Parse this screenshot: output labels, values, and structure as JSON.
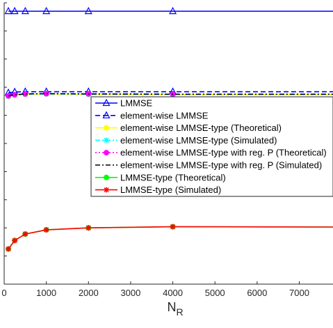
{
  "chart_data": {
    "type": "line",
    "title": "",
    "xlabel": "N",
    "xlabel_subscript": "R",
    "ylabel": "",
    "xlim": [
      0,
      7800
    ],
    "ylim": [
      0,
      1
    ],
    "xticks": [
      0,
      1000,
      2000,
      3000,
      4000,
      5000,
      6000,
      7000
    ],
    "xtick_labels": [
      "0",
      "1000",
      "2000",
      "3000",
      "4000",
      "5000",
      "6000",
      "7000"
    ],
    "grid": false,
    "legend_position": "right",
    "series": [
      {
        "name": "LMMSE",
        "color": "#0000ff",
        "dash": "solid",
        "marker": "triangle",
        "x": [
          100,
          250,
          500,
          1000,
          2000,
          4000,
          7800
        ],
        "y": [
          0.97,
          0.97,
          0.97,
          0.97,
          0.97,
          0.97,
          0.97
        ],
        "marker_x": [
          100,
          250,
          500,
          1000,
          2000,
          4000
        ]
      },
      {
        "name": "element-wise LMMSE",
        "color": "#0000ff",
        "dash": "dashed",
        "marker": "triangle",
        "x": [
          100,
          250,
          500,
          1000,
          2000,
          4000,
          7800
        ],
        "y": [
          0.68,
          0.683,
          0.684,
          0.684,
          0.684,
          0.684,
          0.684
        ],
        "marker_x": [
          100,
          250,
          500,
          1000,
          2000,
          4000
        ]
      },
      {
        "name": "element-wise LMMSE-type (Theoretical)",
        "color": "#ffff00",
        "dash": "solid",
        "marker": "circle",
        "x": [
          100,
          250,
          500,
          1000,
          2000,
          4000,
          7800
        ],
        "y": [
          0.668,
          0.672,
          0.675,
          0.676,
          0.675,
          0.674,
          0.674
        ],
        "marker_x": [
          100,
          250,
          500,
          1000,
          2000,
          4000
        ]
      },
      {
        "name": "element-wise LMMSE-type (Simulated)",
        "color": "#00ffff",
        "dash": "dashdot",
        "marker": "star",
        "x": [
          100,
          250,
          500,
          1000,
          2000,
          4000,
          7800
        ],
        "y": [
          0.668,
          0.672,
          0.675,
          0.676,
          0.675,
          0.674,
          0.674
        ],
        "marker_x": [
          100,
          250,
          500,
          1000,
          2000,
          4000
        ]
      },
      {
        "name": "element-wise LMMSE-type with reg. P (Theoretical)",
        "color": "#ff00ff",
        "dash": "dotted",
        "marker": "circle",
        "x": [
          100,
          250,
          500,
          1000,
          2000,
          4000,
          7800
        ],
        "y": [
          0.669,
          0.673,
          0.676,
          0.677,
          0.676,
          0.675,
          0.675
        ],
        "marker_x": [
          100,
          250,
          500,
          1000,
          2000,
          4000
        ]
      },
      {
        "name": "element-wise LMMSE-type with reg. P (Simulated)",
        "color": "#000000",
        "dash": "dashdot",
        "marker": "none",
        "x": [
          100,
          250,
          500,
          1000,
          2000,
          4000,
          7800
        ],
        "y": [
          0.669,
          0.673,
          0.676,
          0.677,
          0.676,
          0.675,
          0.675
        ],
        "marker_x": []
      },
      {
        "name": "LMMSE-type (Theoretical)",
        "color": "#00ff00",
        "dash": "solid",
        "marker": "circle",
        "x": [
          100,
          250,
          500,
          1000,
          2000,
          4000,
          7800
        ],
        "y": [
          0.125,
          0.155,
          0.178,
          0.193,
          0.2,
          0.204,
          0.203
        ],
        "marker_x": [
          100,
          250,
          500,
          1000,
          2000,
          4000
        ]
      },
      {
        "name": "LMMSE-type (Simulated)",
        "color": "#ff0000",
        "dash": "solid",
        "marker": "star",
        "x": [
          100,
          250,
          500,
          1000,
          2000,
          4000,
          7800
        ],
        "y": [
          0.125,
          0.155,
          0.178,
          0.193,
          0.2,
          0.204,
          0.203
        ],
        "marker_x": [
          100,
          250,
          500,
          1000,
          2000,
          4000
        ]
      }
    ]
  }
}
